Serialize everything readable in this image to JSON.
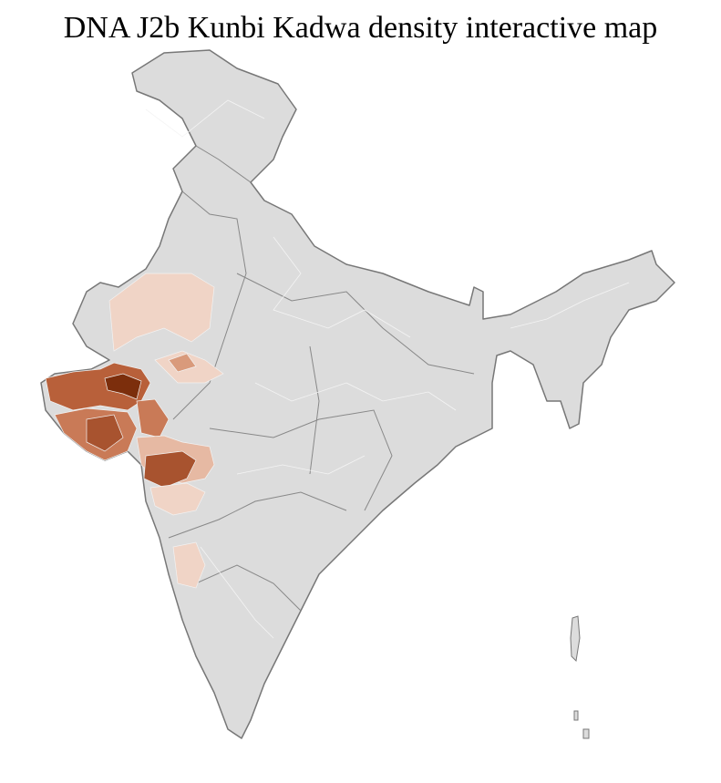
{
  "title": "DNA J2b Kunbi Kadwa density interactive map"
}
